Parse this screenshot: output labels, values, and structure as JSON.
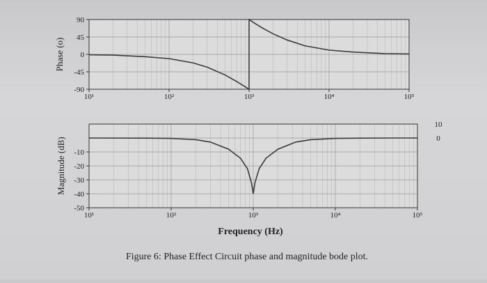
{
  "caption": "Figure 6: Phase Effect Circuit phase and magnitude bode plot.",
  "chart_data": [
    {
      "type": "line",
      "name": "phase-plot",
      "ylabel": "Phase (o)",
      "xlabel": "",
      "xscale": "log",
      "xlim": [
        10,
        100000
      ],
      "ylim": [
        -90,
        90
      ],
      "grid": true,
      "x_ticks": [
        {
          "value": 10,
          "label": "10¹"
        },
        {
          "value": 100,
          "label": "10²"
        },
        {
          "value": 1000,
          "label": "10³"
        },
        {
          "value": 10000,
          "label": "10⁴"
        },
        {
          "value": 100000,
          "label": "10⁵"
        }
      ],
      "y_ticks": [
        {
          "value": 90,
          "label": "90"
        },
        {
          "value": 45,
          "label": "45"
        },
        {
          "value": 0,
          "label": "0"
        },
        {
          "value": -45,
          "label": "-45"
        },
        {
          "value": -90,
          "label": "-90"
        }
      ],
      "series": [
        {
          "x": [
            10,
            20,
            50,
            100,
            200,
            300,
            500,
            700,
            900,
            1000,
            1000,
            1100,
            1500,
            2000,
            3000,
            5000,
            10000,
            20000,
            50000,
            100000
          ],
          "y": [
            -1,
            -2,
            -6,
            -11,
            -22,
            -33,
            -53,
            -70,
            -84,
            -90,
            90,
            84,
            67,
            53,
            37,
            22,
            11,
            6,
            2,
            1
          ]
        }
      ]
    },
    {
      "type": "line",
      "name": "magnitude-plot",
      "ylabel": "Magnitude (dB)",
      "xlabel": "Frequency (Hz)",
      "xscale": "log",
      "xlim": [
        10,
        100000
      ],
      "ylim": [
        -50,
        10
      ],
      "grid": true,
      "x_ticks": [
        {
          "value": 10,
          "label": "10¹"
        },
        {
          "value": 100,
          "label": "10²"
        },
        {
          "value": 1000,
          "label": "10³"
        },
        {
          "value": 10000,
          "label": "10⁴"
        },
        {
          "value": 100000,
          "label": "10⁵"
        }
      ],
      "y_ticks_left": [
        {
          "value": -10,
          "label": "-10"
        },
        {
          "value": -20,
          "label": "-20"
        },
        {
          "value": -30,
          "label": "-30"
        },
        {
          "value": -40,
          "label": "-40"
        },
        {
          "value": -50,
          "label": "-50"
        }
      ],
      "y_ticks_right": [
        {
          "value": 10,
          "label": "10"
        },
        {
          "value": 0,
          "label": "0"
        }
      ],
      "series": [
        {
          "x": [
            10,
            50,
            100,
            200,
            300,
            500,
            700,
            850,
            950,
            1000,
            1050,
            1180,
            1430,
            2000,
            3300,
            5000,
            10000,
            20000,
            50000,
            100000
          ],
          "y": [
            0,
            -0.1,
            -0.3,
            -1.2,
            -2.9,
            -8,
            -14.5,
            -22,
            -32,
            -40,
            -32,
            -22,
            -14.5,
            -8,
            -2.9,
            -1.2,
            -0.3,
            -0.1,
            0,
            0
          ]
        }
      ]
    }
  ]
}
